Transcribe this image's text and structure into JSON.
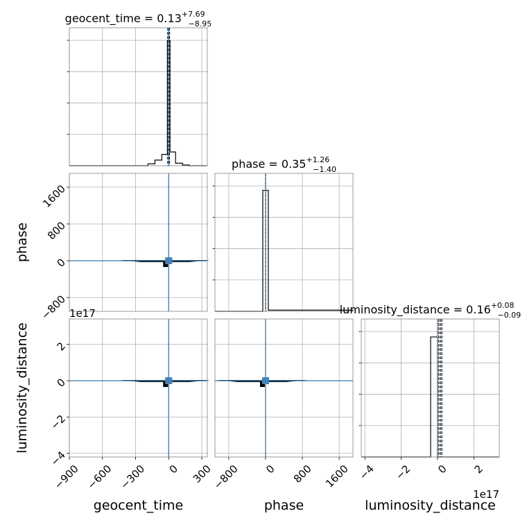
{
  "chart_data": {
    "type": "corner",
    "grid": true,
    "truth_color": "#4682b4",
    "hist_color": "#000000",
    "parameters": [
      {
        "name": "geocent_time",
        "label": "geocent_time",
        "range": [
          -900,
          350
        ],
        "ticks": [
          -900,
          -600,
          -300,
          0,
          300
        ],
        "tick_labels": [
          "−900",
          "−600",
          "−300",
          "0",
          "300"
        ],
        "truth": 0,
        "quantiles": [
          -8.82,
          0.13,
          7.82
        ],
        "title_main": "geocent_time = 0.13",
        "title_sup": "+7.69",
        "title_sub": "−8.95",
        "hist_edges": [
          -900,
          -187.5,
          -125,
          -62.5,
          -12,
          12,
          62.5,
          125,
          187.5,
          350
        ],
        "hist_values": [
          0,
          0.015,
          0.045,
          0.09,
          1.0,
          0.11,
          0.02,
          0.006,
          0
        ],
        "hist_ymax": 1.1
      },
      {
        "name": "phase",
        "label": "phase",
        "range": [
          -1100,
          1900
        ],
        "ticks": [
          -800,
          0,
          800,
          1600
        ],
        "tick_labels": [
          "−800",
          "0",
          "800",
          "1600"
        ],
        "truth": 0,
        "quantiles": [
          -1.05,
          0.35,
          1.61
        ],
        "title_main": "phase = 0.35",
        "title_sup": "+1.26",
        "title_sub": "−1.40",
        "hist_edges": [
          -1100,
          -60,
          0,
          60,
          1900
        ],
        "hist_values": [
          0,
          1.0,
          1.0,
          0.01
        ],
        "hist_ymax": 1.14
      },
      {
        "name": "luminosity_distance",
        "label": "luminosity_distance",
        "range": [
          -4.2,
          3.4
        ],
        "ticks": [
          -4,
          -2,
          0,
          2
        ],
        "tick_labels": [
          "−4",
          "−2",
          "0",
          "2"
        ],
        "truth": 0,
        "quantiles": [
          0.07,
          0.16,
          0.24
        ],
        "title_main": "luminosity_distance = 0.16",
        "title_sup": "+0.08",
        "title_sub": "−0.09",
        "offset_label": "1e17",
        "hist_edges": [
          -4.2,
          -0.38,
          0.0,
          3.4
        ],
        "hist_values": [
          0,
          1.0,
          0
        ],
        "hist_ymax": 1.15
      }
    ]
  }
}
